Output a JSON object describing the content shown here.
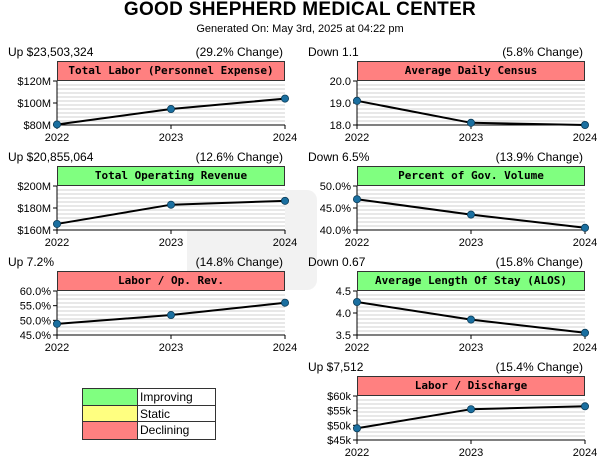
{
  "header": {
    "title": "GOOD SHEPHERD MEDICAL CENTER",
    "generated": "Generated On: May 3rd, 2025 at 04:22 pm"
  },
  "colors": {
    "improving": "#80ff80",
    "static": "#ffff80",
    "declining": "#ff8080",
    "line": "#000000",
    "marker": "#1a6fa0"
  },
  "legend": [
    {
      "label": "Improving",
      "color": "#80ff80"
    },
    {
      "label": "Static",
      "color": "#ffff80"
    },
    {
      "label": "Declining",
      "color": "#ff8080"
    }
  ],
  "chart_data": [
    {
      "type": "line",
      "title": "Total Labor (Personnel Expense)",
      "status": "declining",
      "change_left": "Up $23,503,324",
      "change_right": "(29.2% Change)",
      "x": [
        "2022",
        "2023",
        "2024"
      ],
      "values": [
        80500000,
        94500000,
        104000000
      ],
      "ylim": [
        80000000,
        120000000
      ],
      "yticks": [
        80000000,
        100000000,
        120000000
      ],
      "ytick_labels": [
        "$80M",
        "$100M",
        "$120M"
      ],
      "grid": true
    },
    {
      "type": "line",
      "title": "Average Daily Census",
      "status": "declining",
      "change_left": "Down 1.1",
      "change_right": "(5.8% Change)",
      "x": [
        "2022",
        "2023",
        "2024"
      ],
      "values": [
        19.1,
        18.1,
        18.0
      ],
      "ylim": [
        18.0,
        20.0
      ],
      "yticks": [
        18.0,
        19.0,
        20.0
      ],
      "ytick_labels": [
        "18.0",
        "19.0",
        "20.0"
      ],
      "grid": true
    },
    {
      "type": "line",
      "title": "Total Operating Revenue",
      "status": "improving",
      "change_left": "Up $20,855,064",
      "change_right": "(12.6% Change)",
      "x": [
        "2022",
        "2023",
        "2024"
      ],
      "values": [
        165500000,
        183000000,
        186500000
      ],
      "ylim": [
        160000000,
        200000000
      ],
      "yticks": [
        160000000,
        180000000,
        200000000
      ],
      "ytick_labels": [
        "$160M",
        "$180M",
        "$200M"
      ],
      "grid": true
    },
    {
      "type": "line",
      "title": "Percent of Gov. Volume",
      "status": "improving",
      "change_left": "Down 6.5%",
      "change_right": "(13.9% Change)",
      "x": [
        "2022",
        "2023",
        "2024"
      ],
      "values": [
        47.0,
        43.5,
        40.5
      ],
      "ylim": [
        40.0,
        50.0
      ],
      "yticks": [
        40.0,
        45.0,
        50.0
      ],
      "ytick_labels": [
        "40.0%",
        "45.0%",
        "50.0%"
      ],
      "grid": true
    },
    {
      "type": "line",
      "title": "Labor / Op. Rev.",
      "status": "declining",
      "change_left": "Up 7.2%",
      "change_right": "(14.8% Change)",
      "x": [
        "2022",
        "2023",
        "2024"
      ],
      "values": [
        48.8,
        51.8,
        56.0
      ],
      "ylim": [
        45.0,
        60.0
      ],
      "yticks": [
        45.0,
        50.0,
        55.0,
        60.0
      ],
      "ytick_labels": [
        "45.0%",
        "50.0%",
        "55.0%",
        "60.0%"
      ],
      "grid": true
    },
    {
      "type": "line",
      "title": "Average Length Of Stay (ALOS)",
      "status": "improving",
      "change_left": "Down 0.67",
      "change_right": "(15.8% Change)",
      "x": [
        "2022",
        "2023",
        "2024"
      ],
      "values": [
        4.25,
        3.85,
        3.55
      ],
      "ylim": [
        3.5,
        4.5
      ],
      "yticks": [
        3.5,
        4.0,
        4.5
      ],
      "ytick_labels": [
        "3.5",
        "4.0",
        "4.5"
      ],
      "grid": true
    },
    {
      "type": "line",
      "title": "Labor / Discharge",
      "status": "declining",
      "change_left": "Up $7,512",
      "change_right": "(15.4% Change)",
      "x": [
        "2022",
        "2023",
        "2024"
      ],
      "values": [
        49000,
        55500,
        56500
      ],
      "ylim": [
        45000,
        60000
      ],
      "yticks": [
        45000,
        50000,
        55000,
        60000
      ],
      "ytick_labels": [
        "$45k",
        "$50k",
        "$55k",
        "$60k"
      ],
      "grid": true
    }
  ]
}
